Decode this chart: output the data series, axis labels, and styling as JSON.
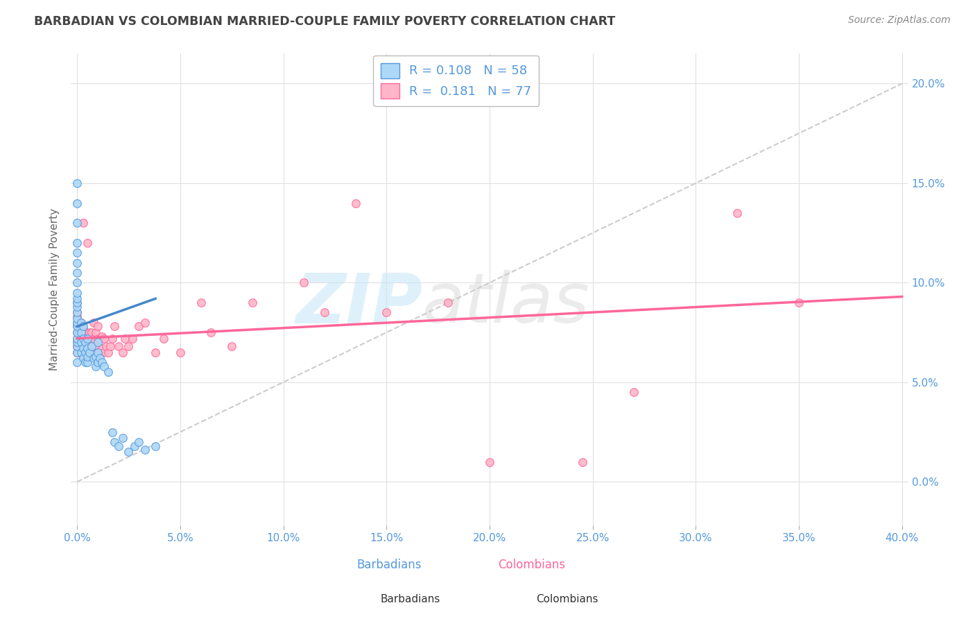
{
  "title": "BARBADIAN VS COLOMBIAN MARRIED-COUPLE FAMILY POVERTY CORRELATION CHART",
  "source": "Source: ZipAtlas.com",
  "ylabel": "Married-Couple Family Poverty",
  "xlim": [
    -0.003,
    0.403
  ],
  "ylim": [
    -0.022,
    0.215
  ],
  "xticks": [
    0.0,
    0.05,
    0.1,
    0.15,
    0.2,
    0.25,
    0.3,
    0.35,
    0.4
  ],
  "yticks": [
    0.0,
    0.05,
    0.1,
    0.15,
    0.2
  ],
  "barbadian_color": "#ADD8F7",
  "colombian_color": "#FFB6C8",
  "barbadian_edge_color": "#5599DD",
  "colombian_edge_color": "#FF6699",
  "trend_barbadian_color": "#4488CC",
  "trend_colombian_color": "#FF6699",
  "diagonal_color": "#CCCCCC",
  "R_barbadian": 0.108,
  "N_barbadian": 58,
  "R_colombian": 0.181,
  "N_colombian": 77,
  "background_color": "#FFFFFF",
  "grid_color": "#E0E0E0",
  "title_color": "#444444",
  "axis_label_color": "#666666",
  "tick_label_color": "#5599DD",
  "barbadian_x": [
    0.0,
    0.0,
    0.0,
    0.0,
    0.0,
    0.0,
    0.0,
    0.0,
    0.0,
    0.0,
    0.0,
    0.0,
    0.0,
    0.0,
    0.0,
    0.0,
    0.0,
    0.0,
    0.0,
    0.0,
    0.0,
    0.0,
    0.002,
    0.002,
    0.002,
    0.002,
    0.003,
    0.003,
    0.003,
    0.003,
    0.004,
    0.004,
    0.004,
    0.005,
    0.005,
    0.005,
    0.005,
    0.006,
    0.007,
    0.008,
    0.009,
    0.009,
    0.01,
    0.01,
    0.01,
    0.011,
    0.012,
    0.013,
    0.015,
    0.017,
    0.018,
    0.02,
    0.022,
    0.025,
    0.028,
    0.03,
    0.033,
    0.038
  ],
  "barbadian_y": [
    0.06,
    0.065,
    0.068,
    0.07,
    0.072,
    0.075,
    0.078,
    0.08,
    0.082,
    0.085,
    0.088,
    0.09,
    0.092,
    0.095,
    0.1,
    0.105,
    0.11,
    0.115,
    0.12,
    0.13,
    0.14,
    0.15,
    0.065,
    0.07,
    0.075,
    0.08,
    0.062,
    0.067,
    0.072,
    0.078,
    0.06,
    0.065,
    0.07,
    0.06,
    0.063,
    0.067,
    0.072,
    0.065,
    0.068,
    0.062,
    0.058,
    0.063,
    0.06,
    0.065,
    0.07,
    0.062,
    0.06,
    0.058,
    0.055,
    0.025,
    0.02,
    0.018,
    0.022,
    0.015,
    0.018,
    0.02,
    0.016,
    0.018
  ],
  "colombian_x": [
    0.0,
    0.0,
    0.0,
    0.0,
    0.0,
    0.0,
    0.0,
    0.0,
    0.0,
    0.0,
    0.001,
    0.001,
    0.002,
    0.002,
    0.002,
    0.002,
    0.003,
    0.003,
    0.003,
    0.003,
    0.003,
    0.004,
    0.004,
    0.004,
    0.005,
    0.005,
    0.005,
    0.005,
    0.006,
    0.006,
    0.006,
    0.007,
    0.007,
    0.007,
    0.008,
    0.008,
    0.008,
    0.009,
    0.009,
    0.01,
    0.01,
    0.01,
    0.011,
    0.011,
    0.012,
    0.012,
    0.013,
    0.013,
    0.014,
    0.015,
    0.016,
    0.017,
    0.018,
    0.02,
    0.022,
    0.023,
    0.025,
    0.027,
    0.03,
    0.033,
    0.038,
    0.042,
    0.05,
    0.06,
    0.065,
    0.075,
    0.085,
    0.11,
    0.12,
    0.135,
    0.15,
    0.18,
    0.2,
    0.245,
    0.27,
    0.32,
    0.35
  ],
  "colombian_y": [
    0.065,
    0.068,
    0.07,
    0.072,
    0.075,
    0.078,
    0.08,
    0.083,
    0.085,
    0.09,
    0.068,
    0.073,
    0.065,
    0.07,
    0.075,
    0.08,
    0.063,
    0.068,
    0.072,
    0.077,
    0.13,
    0.065,
    0.07,
    0.075,
    0.062,
    0.067,
    0.072,
    0.12,
    0.065,
    0.07,
    0.075,
    0.065,
    0.07,
    0.075,
    0.065,
    0.072,
    0.08,
    0.068,
    0.075,
    0.065,
    0.072,
    0.078,
    0.065,
    0.072,
    0.067,
    0.073,
    0.065,
    0.072,
    0.068,
    0.065,
    0.068,
    0.072,
    0.078,
    0.068,
    0.065,
    0.072,
    0.068,
    0.072,
    0.078,
    0.08,
    0.065,
    0.072,
    0.065,
    0.09,
    0.075,
    0.068,
    0.09,
    0.1,
    0.085,
    0.14,
    0.085,
    0.09,
    0.01,
    0.01,
    0.045,
    0.135,
    0.09
  ]
}
